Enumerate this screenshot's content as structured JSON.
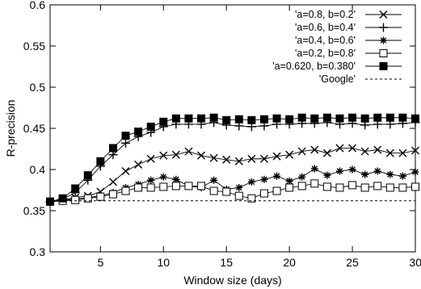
{
  "chart_data": {
    "type": "line",
    "title": "",
    "xlabel": "Window size (days)",
    "ylabel": "R-precision",
    "xlim": [
      1,
      30
    ],
    "ylim": [
      0.3,
      0.6
    ],
    "xticks": [
      5,
      10,
      15,
      20,
      25,
      30
    ],
    "yticks": [
      0.3,
      0.35,
      0.4,
      0.45,
      0.5,
      0.55,
      0.6
    ],
    "grid": false,
    "legend_position": "top-right",
    "x": [
      1,
      2,
      3,
      4,
      5,
      6,
      7,
      8,
      9,
      10,
      11,
      12,
      13,
      14,
      15,
      16,
      17,
      18,
      19,
      20,
      21,
      22,
      23,
      24,
      25,
      26,
      27,
      28,
      29,
      30
    ],
    "series": [
      {
        "name": "'a=0.8, b=0.2'",
        "marker": "x",
        "values": [
          0.361,
          0.363,
          0.366,
          0.368,
          0.373,
          0.385,
          0.398,
          0.406,
          0.413,
          0.417,
          0.418,
          0.422,
          0.417,
          0.414,
          0.412,
          0.41,
          0.413,
          0.413,
          0.416,
          0.418,
          0.422,
          0.424,
          0.42,
          0.426,
          0.426,
          0.422,
          0.424,
          0.42,
          0.42,
          0.423
        ]
      },
      {
        "name": "'a=0.6, b=0.4'",
        "marker": "plus",
        "values": [
          0.361,
          0.364,
          0.372,
          0.387,
          0.404,
          0.418,
          0.432,
          0.44,
          0.445,
          0.452,
          0.455,
          0.455,
          0.455,
          0.457,
          0.454,
          0.453,
          0.452,
          0.453,
          0.455,
          0.455,
          0.456,
          0.456,
          0.457,
          0.455,
          0.456,
          0.454,
          0.455,
          0.455,
          0.456,
          0.457
        ]
      },
      {
        "name": "'a=0.4, b=0.6'",
        "marker": "star",
        "values": [
          0.361,
          0.363,
          0.364,
          0.366,
          0.368,
          0.372,
          0.378,
          0.382,
          0.387,
          0.391,
          0.388,
          0.38,
          0.378,
          0.387,
          0.376,
          0.378,
          0.385,
          0.388,
          0.392,
          0.386,
          0.391,
          0.401,
          0.393,
          0.398,
          0.4,
          0.394,
          0.398,
          0.394,
          0.392,
          0.397
        ]
      },
      {
        "name": "'a=0.2, b=0.8'",
        "marker": "square-open",
        "values": [
          0.361,
          0.362,
          0.363,
          0.365,
          0.367,
          0.37,
          0.374,
          0.378,
          0.378,
          0.379,
          0.38,
          0.38,
          0.38,
          0.374,
          0.373,
          0.368,
          0.365,
          0.371,
          0.374,
          0.378,
          0.38,
          0.383,
          0.379,
          0.378,
          0.381,
          0.378,
          0.38,
          0.378,
          0.378,
          0.379
        ]
      },
      {
        "name": "'a=0.620, b=0.380'",
        "marker": "square-filled",
        "values": [
          0.361,
          0.365,
          0.377,
          0.393,
          0.41,
          0.426,
          0.441,
          0.446,
          0.452,
          0.458,
          0.462,
          0.462,
          0.462,
          0.463,
          0.46,
          0.461,
          0.46,
          0.461,
          0.462,
          0.461,
          0.463,
          0.462,
          0.463,
          0.462,
          0.463,
          0.462,
          0.463,
          0.463,
          0.463,
          0.462
        ]
      },
      {
        "name": "'Google'",
        "marker": "none",
        "dashed": true,
        "values": [
          0.362,
          0.362,
          0.362,
          0.362,
          0.362,
          0.362,
          0.362,
          0.362,
          0.362,
          0.362,
          0.362,
          0.362,
          0.362,
          0.362,
          0.362,
          0.362,
          0.362,
          0.362,
          0.362,
          0.362,
          0.362,
          0.362,
          0.362,
          0.362,
          0.362,
          0.362,
          0.362,
          0.362,
          0.362,
          0.362
        ]
      }
    ]
  }
}
